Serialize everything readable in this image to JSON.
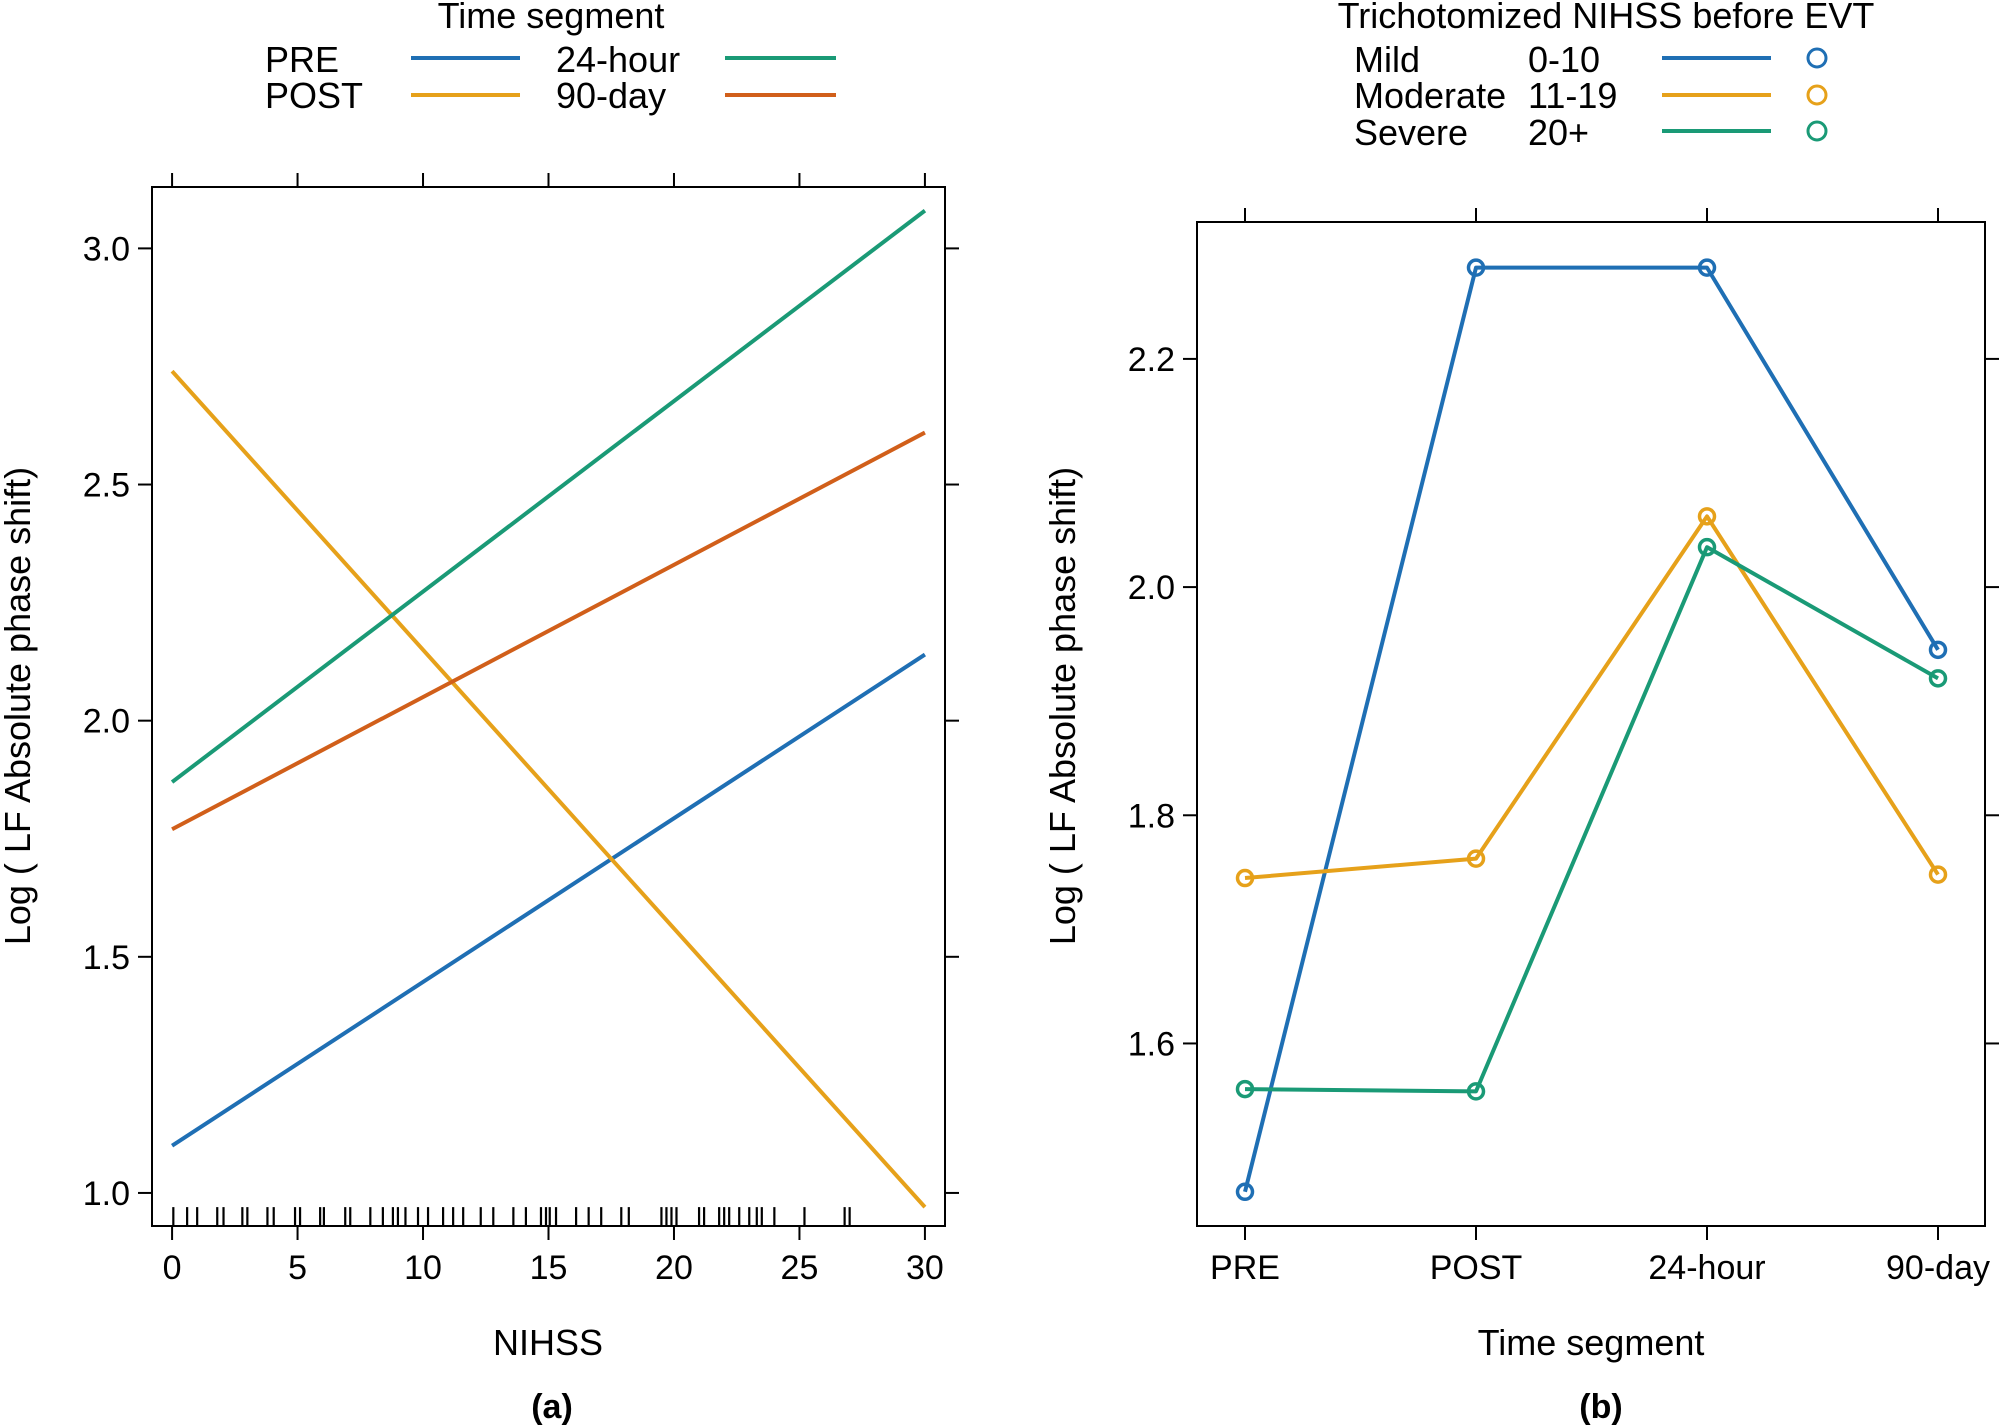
{
  "colors": {
    "blue": "#1f6fb4",
    "orange": "#e6a11a",
    "green": "#1a9a76",
    "red": "#d15f1a"
  },
  "chart_data": [
    {
      "type": "line",
      "panel_label": "(a)",
      "xlabel": "NIHSS",
      "ylabel": "Log ( LF Absolute phase shift)",
      "xlim": [
        -0.8,
        30.8
      ],
      "ylim": [
        0.93,
        3.13
      ],
      "xticks": [
        0,
        5,
        10,
        15,
        20,
        25,
        30
      ],
      "yticks": [
        1.0,
        1.5,
        2.0,
        2.5,
        3.0
      ],
      "ytick_labels": [
        "1.0",
        "1.5",
        "2.0",
        "2.5",
        "3.0"
      ],
      "grid": false,
      "legend": {
        "title": "Time segment",
        "placement": "top",
        "entries": [
          {
            "label": "PRE",
            "color": "#1f6fb4"
          },
          {
            "label": "24-hour",
            "color": "#1a9a76"
          },
          {
            "label": "POST",
            "color": "#e6a11a"
          },
          {
            "label": "90-day",
            "color": "#d15f1a"
          }
        ]
      },
      "series": [
        {
          "name": "PRE",
          "color": "#1f6fb4",
          "x": [
            0,
            30
          ],
          "y": [
            1.1,
            2.14
          ]
        },
        {
          "name": "POST",
          "color": "#e6a11a",
          "x": [
            0,
            30
          ],
          "y": [
            2.74,
            0.97
          ]
        },
        {
          "name": "24-hour",
          "color": "#1a9a76",
          "x": [
            0,
            30
          ],
          "y": [
            1.87,
            3.08
          ]
        },
        {
          "name": "90-day",
          "color": "#d15f1a",
          "x": [
            0,
            30
          ],
          "y": [
            1.77,
            2.61
          ]
        }
      ],
      "rug": [
        0.05,
        0.6,
        1.0,
        1.8,
        2.05,
        2.8,
        3.0,
        3.8,
        4.05,
        4.9,
        5.1,
        5.9,
        6.05,
        6.9,
        7.1,
        7.9,
        8.4,
        8.8,
        9.0,
        9.3,
        9.8,
        10.2,
        10.8,
        11.2,
        11.6,
        12.3,
        12.8,
        13.6,
        14.1,
        14.7,
        14.9,
        15.05,
        15.3,
        16.1,
        16.6,
        17.1,
        17.9,
        18.2,
        19.5,
        19.7,
        19.9,
        20.1,
        21.0,
        21.2,
        21.8,
        22.0,
        22.2,
        22.6,
        23.0,
        23.3,
        23.5,
        24.0,
        25.2,
        26.8,
        27.0
      ],
      "rug_y_range": [
        0.93,
        0.97
      ]
    },
    {
      "type": "line",
      "panel_label": "(b)",
      "xlabel": "Time segment",
      "ylabel": "Log ( LF Absolute phase shift)",
      "categories": [
        "PRE",
        "POST",
        "24-hour",
        "90-day"
      ],
      "ylim": [
        1.44,
        2.32
      ],
      "yticks": [
        1.6,
        1.8,
        2.0,
        2.2
      ],
      "ytick_labels": [
        "1.6",
        "1.8",
        "2.0",
        "2.2"
      ],
      "grid": false,
      "markers": true,
      "legend": {
        "title": "Trichotomized NIHSS before EVT",
        "placement": "top",
        "entries": [
          {
            "label": "Mild",
            "range": "0-10",
            "color": "#1f6fb4"
          },
          {
            "label": "Moderate",
            "range": "11-19",
            "color": "#e6a11a"
          },
          {
            "label": "Severe",
            "range": "20+",
            "color": "#1a9a76"
          }
        ]
      },
      "series": [
        {
          "name": "Mild 0-10",
          "color": "#1f6fb4",
          "values": [
            1.47,
            2.28,
            2.28,
            1.945
          ]
        },
        {
          "name": "Moderate 11-19",
          "color": "#e6a11a",
          "values": [
            1.745,
            1.762,
            2.062,
            1.748
          ]
        },
        {
          "name": "Severe 20+",
          "color": "#1a9a76",
          "values": [
            1.56,
            1.558,
            2.035,
            1.92
          ]
        }
      ]
    }
  ]
}
